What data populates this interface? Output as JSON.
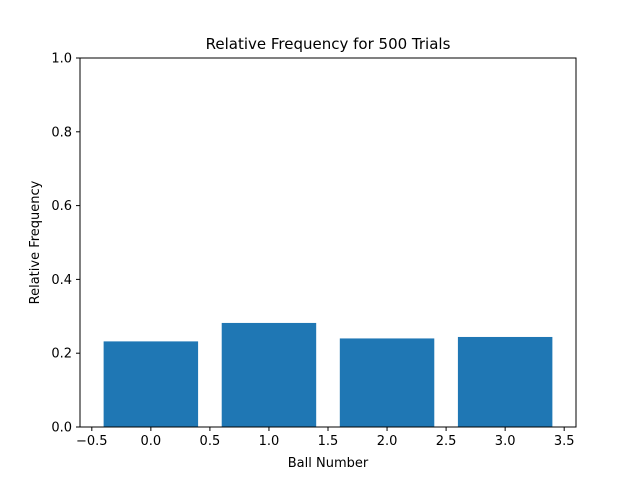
{
  "chart_data": {
    "type": "bar",
    "title": "Relative Frequency for 500 Trials",
    "xlabel": "Ball Number",
    "ylabel": "Relative Frequency",
    "x": [
      0,
      1,
      2,
      3
    ],
    "values": [
      0.232,
      0.282,
      0.24,
      0.244
    ],
    "bar_width": 0.8,
    "xlim": [
      -0.6,
      3.6
    ],
    "ylim": [
      0,
      1.0
    ],
    "xticks": [
      -0.5,
      0.0,
      0.5,
      1.0,
      1.5,
      2.0,
      2.5,
      3.0,
      3.5
    ],
    "xtick_labels": [
      "−0.5",
      "0.0",
      "0.5",
      "1.0",
      "1.5",
      "2.0",
      "2.5",
      "3.0",
      "3.5"
    ],
    "yticks": [
      0.0,
      0.2,
      0.4,
      0.6,
      0.8,
      1.0
    ],
    "ytick_labels": [
      "0.0",
      "0.2",
      "0.4",
      "0.6",
      "0.8",
      "1.0"
    ],
    "bar_color": "#1f77b4",
    "grid": false,
    "legend": "none"
  }
}
